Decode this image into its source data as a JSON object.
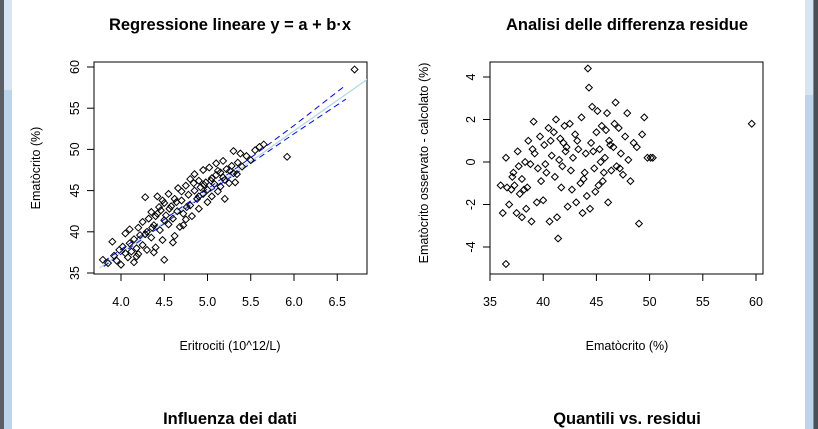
{
  "window": {
    "frame_color": "#bcd4ec",
    "background": "#ffffff"
  },
  "panels": [
    {
      "title": "Regressione lineare y = a + b·x",
      "xlabel": "Eritrociti (10^12/L)",
      "ylabel": "Ematòcrito (%)",
      "xticks": [
        "4.0",
        "4.5",
        "5.0",
        "5.5",
        "6.0",
        "6.5"
      ],
      "yticks": [
        "35",
        "40",
        "45",
        "50",
        "55",
        "60"
      ]
    },
    {
      "title": "Analisi delle differenza residue",
      "xlabel": "Ematòcrito (%)",
      "ylabel": "Ematòcrito osservato - calcolato (%)",
      "xticks": [
        "35",
        "40",
        "45",
        "50",
        "55",
        "60"
      ],
      "yticks": [
        "-4",
        "-2",
        "0",
        "2",
        "4"
      ]
    },
    {
      "title": "Influenza dei dati"
    },
    {
      "title": "Quantili vs. residui"
    }
  ],
  "chart_data": [
    {
      "type": "scatter",
      "title": "Regressione lineare y = a + b·x",
      "xlabel": "Eritrociti (10^12/L)",
      "ylabel": "Ematòcrito (%)",
      "xlim": [
        3.75,
        6.9
      ],
      "ylim": [
        35.0,
        60.5
      ],
      "grid": false,
      "regression_line": {
        "color": "#add8e6",
        "from": [
          3.75,
          35.6
        ],
        "to": [
          6.9,
          58.9
        ]
      },
      "confidence_bands": {
        "color": "#0000ff",
        "style": "dashed",
        "upper": [
          [
            3.8,
            36.4
          ],
          [
            4.5,
            41.5
          ],
          [
            5.0,
            45.2
          ],
          [
            5.5,
            49.0
          ],
          [
            6.0,
            52.9
          ],
          [
            6.6,
            57.8
          ]
        ],
        "lower": [
          [
            3.8,
            35.8
          ],
          [
            4.5,
            41.0
          ],
          [
            5.0,
            44.7
          ],
          [
            5.5,
            48.3
          ],
          [
            6.0,
            51.9
          ],
          [
            6.6,
            56.1
          ]
        ]
      },
      "points": [
        [
          3.79,
          36.6
        ],
        [
          3.85,
          36.2
        ],
        [
          3.9,
          38.8
        ],
        [
          3.92,
          37.1
        ],
        [
          3.95,
          36.5
        ],
        [
          3.98,
          37.8
        ],
        [
          4.0,
          36.0
        ],
        [
          4.02,
          38.2
        ],
        [
          4.05,
          37.4
        ],
        [
          4.05,
          39.8
        ],
        [
          4.08,
          36.9
        ],
        [
          4.1,
          38.6
        ],
        [
          4.1,
          40.3
        ],
        [
          4.12,
          37.6
        ],
        [
          4.15,
          39.1
        ],
        [
          4.15,
          36.3
        ],
        [
          4.18,
          38.0
        ],
        [
          4.2,
          40.5
        ],
        [
          4.2,
          37.3
        ],
        [
          4.22,
          39.6
        ],
        [
          4.25,
          41.2
        ],
        [
          4.25,
          38.4
        ],
        [
          4.28,
          44.2
        ],
        [
          4.3,
          40.0
        ],
        [
          4.3,
          37.8
        ],
        [
          4.32,
          41.6
        ],
        [
          4.35,
          39.3
        ],
        [
          4.35,
          42.4
        ],
        [
          4.38,
          40.8
        ],
        [
          4.4,
          38.1
        ],
        [
          4.4,
          41.9
        ],
        [
          4.42,
          44.3
        ],
        [
          4.44,
          43.0
        ],
        [
          4.45,
          40.2
        ],
        [
          4.46,
          42.6
        ],
        [
          4.48,
          39.0
        ],
        [
          4.5,
          41.4
        ],
        [
          4.5,
          43.5
        ],
        [
          4.5,
          36.6
        ],
        [
          4.52,
          42.0
        ],
        [
          4.55,
          44.6
        ],
        [
          4.55,
          40.9
        ],
        [
          4.58,
          43.1
        ],
        [
          4.6,
          41.6
        ],
        [
          4.6,
          38.7
        ],
        [
          4.62,
          44.0
        ],
        [
          4.65,
          42.5
        ],
        [
          4.66,
          45.3
        ],
        [
          4.68,
          40.6
        ],
        [
          4.7,
          43.8
        ],
        [
          4.72,
          42.2
        ],
        [
          4.75,
          45.6
        ],
        [
          4.75,
          41.5
        ],
        [
          4.78,
          44.5
        ],
        [
          4.8,
          43.2
        ],
        [
          4.8,
          46.4
        ],
        [
          4.82,
          41.9
        ],
        [
          4.85,
          45.0
        ],
        [
          4.85,
          47.0
        ],
        [
          4.88,
          44.0
        ],
        [
          4.9,
          46.2
        ],
        [
          4.9,
          42.8
        ],
        [
          4.92,
          45.4
        ],
        [
          4.95,
          47.5
        ],
        [
          4.95,
          44.6
        ],
        [
          4.98,
          46.0
        ],
        [
          5.0,
          45.1
        ],
        [
          5.0,
          43.6
        ],
        [
          5.02,
          47.8
        ],
        [
          5.05,
          46.5
        ],
        [
          5.05,
          44.3
        ],
        [
          5.08,
          45.8
        ],
        [
          5.1,
          48.3
        ],
        [
          5.1,
          46.9
        ],
        [
          5.12,
          44.9
        ],
        [
          5.15,
          47.2
        ],
        [
          5.15,
          45.5
        ],
        [
          5.18,
          48.6
        ],
        [
          5.2,
          46.3
        ],
        [
          5.2,
          44.0
        ],
        [
          5.22,
          47.6
        ],
        [
          5.25,
          45.9
        ],
        [
          5.28,
          48.0
        ],
        [
          5.3,
          49.8
        ],
        [
          5.3,
          47.1
        ],
        [
          5.32,
          46.0
        ],
        [
          5.35,
          48.4
        ],
        [
          5.38,
          49.5
        ],
        [
          5.4,
          47.9
        ],
        [
          5.45,
          49.2
        ],
        [
          5.5,
          48.7
        ],
        [
          5.55,
          49.9
        ],
        [
          5.6,
          50.3
        ],
        [
          5.65,
          50.6
        ],
        [
          5.92,
          49.1
        ],
        [
          6.7,
          59.7
        ],
        [
          4.18,
          37.0
        ],
        [
          4.28,
          39.7
        ],
        [
          4.36,
          40.5
        ],
        [
          4.42,
          42.2
        ],
        [
          4.48,
          43.8
        ],
        [
          4.56,
          42.8
        ],
        [
          4.64,
          43.6
        ],
        [
          4.7,
          44.9
        ],
        [
          4.76,
          43.0
        ],
        [
          4.84,
          45.9
        ],
        [
          4.9,
          44.3
        ],
        [
          4.96,
          45.7
        ],
        [
          5.04,
          46.2
        ],
        [
          5.12,
          47.4
        ],
        [
          5.18,
          46.6
        ],
        [
          5.26,
          47.4
        ],
        [
          5.34,
          47.0
        ],
        [
          4.72,
          40.8
        ],
        [
          4.62,
          39.5
        ],
        [
          4.38,
          37.5
        ]
      ]
    },
    {
      "type": "scatter",
      "title": "Analisi delle differenza residue",
      "xlabel": "Ematòcrito (%)",
      "ylabel": "Ematòcrito osservato - calcolato (%)",
      "xlim": [
        35,
        60.8
      ],
      "ylim": [
        -5.2,
        4.8
      ],
      "grid": false,
      "points": [
        [
          36.0,
          -1.1
        ],
        [
          36.2,
          -2.4
        ],
        [
          36.5,
          0.2
        ],
        [
          36.5,
          -4.8
        ],
        [
          36.6,
          -1.2
        ],
        [
          36.8,
          -2.0
        ],
        [
          37.0,
          -1.3
        ],
        [
          37.2,
          -0.5
        ],
        [
          37.3,
          -1.1
        ],
        [
          37.5,
          -2.4
        ],
        [
          37.6,
          0.5
        ],
        [
          37.7,
          -0.2
        ],
        [
          37.8,
          -1.5
        ],
        [
          38.0,
          -2.6
        ],
        [
          38.0,
          -0.8
        ],
        [
          38.2,
          -1.3
        ],
        [
          38.3,
          0.0
        ],
        [
          38.4,
          -2.2
        ],
        [
          38.6,
          1.0
        ],
        [
          38.8,
          -0.1
        ],
        [
          38.9,
          -2.8
        ],
        [
          39.1,
          1.9
        ],
        [
          39.2,
          0.4
        ],
        [
          39.4,
          -1.9
        ],
        [
          39.5,
          -0.3
        ],
        [
          39.7,
          1.2
        ],
        [
          39.8,
          -0.9
        ],
        [
          40.0,
          -1.8
        ],
        [
          40.1,
          0.8
        ],
        [
          40.3,
          -0.5
        ],
        [
          40.5,
          1.6
        ],
        [
          40.6,
          -2.8
        ],
        [
          40.8,
          0.3
        ],
        [
          41.0,
          1.4
        ],
        [
          41.1,
          -0.7
        ],
        [
          41.2,
          2.0
        ],
        [
          41.3,
          -2.6
        ],
        [
          41.4,
          -3.6
        ],
        [
          41.5,
          0.1
        ],
        [
          41.6,
          1.1
        ],
        [
          41.8,
          -0.2
        ],
        [
          42.0,
          1.7
        ],
        [
          42.1,
          0.5
        ],
        [
          42.3,
          -2.1
        ],
        [
          42.5,
          1.8
        ],
        [
          42.6,
          -0.4
        ],
        [
          42.8,
          0.2
        ],
        [
          43.0,
          1.3
        ],
        [
          43.1,
          -1.9
        ],
        [
          43.3,
          0.6
        ],
        [
          43.5,
          -1.0
        ],
        [
          43.6,
          2.1
        ],
        [
          43.8,
          -0.8
        ],
        [
          44.0,
          0.4
        ],
        [
          44.1,
          -1.6
        ],
        [
          44.2,
          4.4
        ],
        [
          44.3,
          3.5
        ],
        [
          44.4,
          -2.2
        ],
        [
          44.5,
          0.9
        ],
        [
          44.6,
          2.6
        ],
        [
          44.8,
          -0.3
        ],
        [
          45.0,
          1.4
        ],
        [
          45.1,
          2.4
        ],
        [
          45.2,
          -1.1
        ],
        [
          45.3,
          0.6
        ],
        [
          45.5,
          1.7
        ],
        [
          45.6,
          -0.9
        ],
        [
          45.8,
          0.2
        ],
        [
          46.0,
          2.3
        ],
        [
          46.1,
          -1.9
        ],
        [
          46.2,
          1.0
        ],
        [
          46.4,
          -0.4
        ],
        [
          46.6,
          0.7
        ],
        [
          46.8,
          2.8
        ],
        [
          46.9,
          -0.2
        ],
        [
          47.1,
          1.6
        ],
        [
          47.3,
          0.4
        ],
        [
          47.5,
          -0.6
        ],
        [
          47.7,
          1.2
        ],
        [
          47.9,
          2.3
        ],
        [
          48.0,
          0.1
        ],
        [
          48.2,
          -0.9
        ],
        [
          48.5,
          0.9
        ],
        [
          48.8,
          0.7
        ],
        [
          49.0,
          -2.9
        ],
        [
          49.3,
          1.3
        ],
        [
          49.5,
          2.1
        ],
        [
          49.8,
          0.2
        ],
        [
          50.1,
          0.2
        ],
        [
          50.3,
          0.2
        ],
        [
          59.6,
          1.8
        ],
        [
          39.0,
          0.6
        ],
        [
          40.2,
          -0.1
        ],
        [
          41.9,
          0.9
        ],
        [
          42.7,
          -1.3
        ],
        [
          43.9,
          -0.5
        ],
        [
          44.7,
          0.5
        ],
        [
          45.4,
          0.0
        ],
        [
          46.3,
          0.8
        ],
        [
          47.2,
          -0.3
        ],
        [
          45.9,
          1.5
        ],
        [
          43.2,
          1.0
        ],
        [
          41.7,
          -1.2
        ],
        [
          40.7,
          1.0
        ],
        [
          38.5,
          -1.2
        ],
        [
          37.1,
          -0.7
        ],
        [
          44.9,
          -1.4
        ],
        [
          46.7,
          1.8
        ],
        [
          42.2,
          0.7
        ],
        [
          43.7,
          -2.4
        ],
        [
          45.7,
          -0.5
        ]
      ]
    }
  ]
}
